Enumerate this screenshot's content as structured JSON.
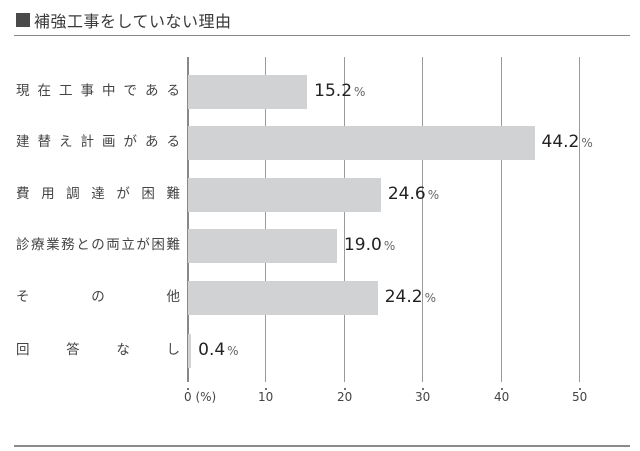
{
  "title": "補強工事をしていない理由",
  "chart_data": {
    "type": "bar",
    "orientation": "horizontal",
    "title": "補強工事をしていない理由",
    "categories": [
      "現在工事中である",
      "建替え計画がある",
      "費用調達が困難",
      "診療業務との両立が困難",
      "その他",
      "回答なし"
    ],
    "values": [
      15.2,
      44.2,
      24.6,
      19.0,
      24.2,
      0.4
    ],
    "value_labels": [
      "15.2",
      "44.2",
      "24.6",
      "19.0",
      "24.2",
      "0.4"
    ],
    "value_unit": "%",
    "xlabel": "(%)",
    "ylabel": "",
    "xlim": [
      0,
      50
    ],
    "xticks": [
      "0",
      "10",
      "20",
      "30",
      "40",
      "50"
    ],
    "grid": true,
    "legend": null,
    "bar_color": "#d1d2d3"
  }
}
